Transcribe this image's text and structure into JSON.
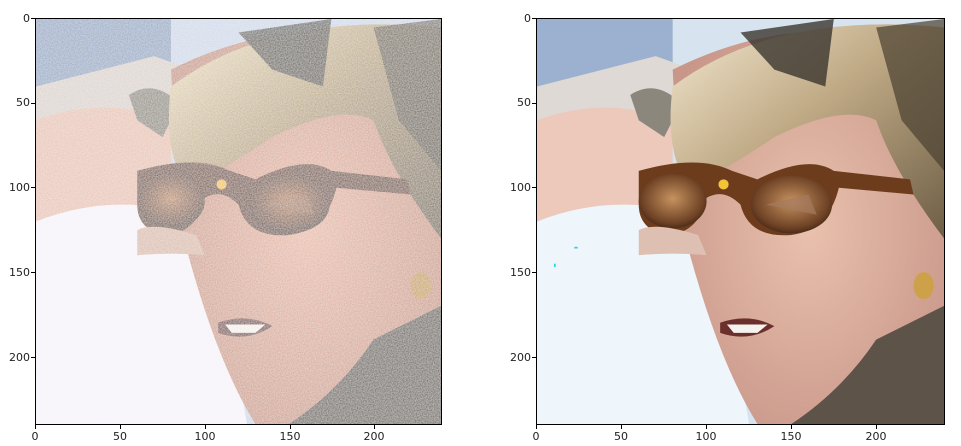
{
  "figure": {
    "panels": [
      {
        "id": "noisy",
        "y_ticks": [
          "0",
          "50",
          "100",
          "150",
          "200"
        ],
        "x_ticks": [
          "0",
          "50",
          "100",
          "150",
          "200"
        ]
      },
      {
        "id": "denoised",
        "y_ticks": [
          "0",
          "50",
          "100",
          "150",
          "200"
        ],
        "x_ticks": [
          "0",
          "50",
          "100",
          "150",
          "200"
        ]
      }
    ],
    "image_subject": "woman-with-sunglasses-photo"
  }
}
